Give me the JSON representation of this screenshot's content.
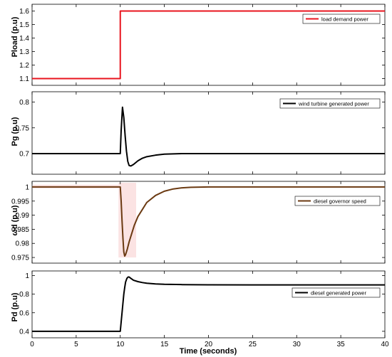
{
  "chart_data": [
    {
      "type": "line",
      "ylabel": "Pload (p.u)",
      "xlim": [
        0,
        40
      ],
      "ylim": [
        1.05,
        1.65
      ],
      "yticks": [
        "1.1",
        "1.2",
        "1.3",
        "1.4",
        "1.5",
        "1.6"
      ],
      "legend_position": "top-right",
      "grid": false,
      "series": [
        {
          "name": "load demand power",
          "color": "#e8141e",
          "x": [
            0,
            10,
            10,
            40
          ],
          "y": [
            1.1,
            1.1,
            1.6,
            1.6
          ]
        }
      ]
    },
    {
      "type": "line",
      "ylabel": "Pg (p.u)",
      "xlim": [
        0,
        40
      ],
      "ylim": [
        0.66,
        0.82
      ],
      "yticks": [
        "0.7",
        "0.75",
        "0.8"
      ],
      "legend_position": "top-right",
      "grid": false,
      "series": [
        {
          "name": "wind turbine generated power",
          "color": "#000000",
          "x": [
            0,
            10,
            10.1,
            10.25,
            10.4,
            10.55,
            10.7,
            10.85,
            11.0,
            11.2,
            11.5,
            12,
            12.5,
            13,
            14,
            15,
            17,
            20,
            25,
            30,
            40
          ],
          "y": [
            0.7,
            0.7,
            0.745,
            0.79,
            0.77,
            0.735,
            0.705,
            0.685,
            0.677,
            0.676,
            0.679,
            0.686,
            0.691,
            0.694,
            0.697,
            0.699,
            0.7,
            0.7,
            0.7,
            0.7,
            0.7
          ]
        }
      ]
    },
    {
      "type": "line",
      "ylabel": "ωd (p.u)",
      "xlim": [
        0,
        40
      ],
      "ylim": [
        0.973,
        1.002
      ],
      "yticks": [
        "0.975",
        "0.98",
        "0.985",
        "0.99",
        "0.995",
        "1"
      ],
      "legend_position": "top-right",
      "grid": false,
      "series": [
        {
          "name": "diesel governor speed",
          "color": "#6b3a12",
          "x": [
            0,
            10,
            10.1,
            10.2,
            10.3,
            10.4,
            10.5,
            10.6,
            10.8,
            11.0,
            11.3,
            11.6,
            12,
            12.5,
            13,
            14,
            15,
            16,
            17,
            18,
            20,
            25,
            40
          ],
          "y": [
            1.0,
            1.0,
            0.995,
            0.988,
            0.982,
            0.977,
            0.9755,
            0.976,
            0.978,
            0.9805,
            0.9835,
            0.9865,
            0.9895,
            0.992,
            0.9945,
            0.997,
            0.9985,
            0.9993,
            0.9997,
            0.9999,
            1.0,
            1.0,
            1.0
          ]
        }
      ]
    },
    {
      "type": "line",
      "ylabel": "Pd (p.u)",
      "xlabel": "Time (seconds)",
      "xlim": [
        0,
        40
      ],
      "ylim": [
        0.33,
        1.05
      ],
      "xticks": [
        "0",
        "5",
        "10",
        "15",
        "20",
        "25",
        "30",
        "35",
        "40"
      ],
      "yticks": [
        "0.4",
        "0.6",
        "0.8",
        "1"
      ],
      "legend_position": "top-right",
      "grid": false,
      "series": [
        {
          "name": "diesel generated power",
          "color": "#000000",
          "x": [
            0,
            10,
            10.1,
            10.2,
            10.3,
            10.4,
            10.5,
            10.6,
            10.75,
            10.9,
            11.0,
            11.2,
            11.5,
            12,
            12.5,
            13,
            14,
            15,
            17,
            20,
            25,
            30,
            40
          ],
          "y": [
            0.4,
            0.4,
            0.5,
            0.6,
            0.7,
            0.8,
            0.87,
            0.93,
            0.97,
            0.985,
            0.985,
            0.97,
            0.95,
            0.935,
            0.925,
            0.918,
            0.91,
            0.906,
            0.903,
            0.901,
            0.9,
            0.9,
            0.9
          ]
        }
      ]
    }
  ]
}
